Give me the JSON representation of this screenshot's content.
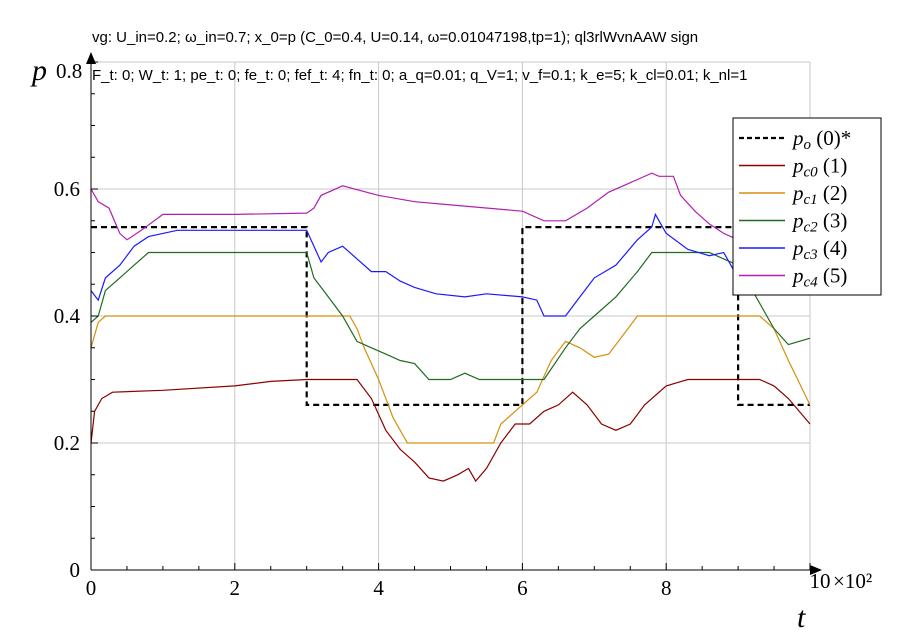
{
  "header": {
    "title": "vg: U_in=0.2; ω_in=0.7; x_0=p (C_0=0.4, U=0.14, ω=0.01047198,tp=1); ql3rlWvnAAW sign",
    "subtitle": "F_t: 0; W_t: 1; pe_t: 0; fe_t: 0; fef_t: 4; fn_t: 0; a_q=0.01; q_V=1; v_f=0.1; k_e=5; k_cl=0.01; k_nl=1"
  },
  "chart_data": {
    "type": "line",
    "xlabel": "t",
    "ylabel": "p",
    "x_multiplier_label": "×10²",
    "xlim": [
      0,
      10
    ],
    "ylim": [
      0,
      0.8
    ],
    "x_ticks": [
      0,
      2,
      4,
      6,
      8,
      10
    ],
    "x_tick_labels": [
      "0",
      "2",
      "4",
      "6",
      "8",
      "10"
    ],
    "y_ticks": [
      0,
      0.2,
      0.4,
      0.6,
      0.8
    ],
    "y_tick_labels": [
      "0",
      "0.2",
      "0.4",
      "0.6",
      "0.8"
    ],
    "grid": true,
    "legend_position": "top-right",
    "series": [
      {
        "name": "p_o (0)*",
        "sub": "o",
        "idx": " (0)*",
        "color": "#000000",
        "dash": true,
        "points": [
          [
            0,
            0.54
          ],
          [
            3,
            0.54
          ],
          [
            3,
            0.26
          ],
          [
            6,
            0.26
          ],
          [
            6,
            0.54
          ],
          [
            9,
            0.54
          ],
          [
            9,
            0.26
          ],
          [
            10,
            0.26
          ]
        ]
      },
      {
        "name": "p_c0 (1)",
        "sub": "c0",
        "idx": " (1)",
        "color": "#8b0000",
        "dash": false,
        "points": [
          [
            0,
            0.2
          ],
          [
            0.05,
            0.25
          ],
          [
            0.15,
            0.27
          ],
          [
            0.3,
            0.28
          ],
          [
            1,
            0.283
          ],
          [
            2,
            0.29
          ],
          [
            2.5,
            0.297
          ],
          [
            3,
            0.3
          ],
          [
            3.7,
            0.3
          ],
          [
            3.9,
            0.27
          ],
          [
            4.1,
            0.22
          ],
          [
            4.3,
            0.19
          ],
          [
            4.5,
            0.17
          ],
          [
            4.7,
            0.145
          ],
          [
            4.9,
            0.14
          ],
          [
            5.1,
            0.15
          ],
          [
            5.25,
            0.16
          ],
          [
            5.35,
            0.14
          ],
          [
            5.5,
            0.16
          ],
          [
            5.7,
            0.2
          ],
          [
            5.9,
            0.23
          ],
          [
            6.1,
            0.23
          ],
          [
            6.3,
            0.25
          ],
          [
            6.5,
            0.26
          ],
          [
            6.7,
            0.28
          ],
          [
            6.9,
            0.26
          ],
          [
            7.1,
            0.23
          ],
          [
            7.3,
            0.22
          ],
          [
            7.5,
            0.23
          ],
          [
            7.7,
            0.26
          ],
          [
            8,
            0.29
          ],
          [
            8.3,
            0.3
          ],
          [
            9.3,
            0.3
          ],
          [
            9.5,
            0.29
          ],
          [
            9.7,
            0.27
          ],
          [
            10,
            0.23
          ]
        ]
      },
      {
        "name": "p_c1 (2)",
        "sub": "c1",
        "idx": " (2)",
        "color": "#d4900e",
        "dash": false,
        "points": [
          [
            0,
            0.35
          ],
          [
            0.1,
            0.39
          ],
          [
            0.2,
            0.4
          ],
          [
            3.6,
            0.4
          ],
          [
            3.7,
            0.38
          ],
          [
            3.8,
            0.35
          ],
          [
            4.0,
            0.3
          ],
          [
            4.2,
            0.24
          ],
          [
            4.4,
            0.2
          ],
          [
            5.6,
            0.2
          ],
          [
            5.7,
            0.23
          ],
          [
            5.9,
            0.25
          ],
          [
            6.2,
            0.28
          ],
          [
            6.4,
            0.33
          ],
          [
            6.6,
            0.36
          ],
          [
            6.8,
            0.35
          ],
          [
            7.0,
            0.335
          ],
          [
            7.2,
            0.34
          ],
          [
            7.4,
            0.37
          ],
          [
            7.6,
            0.4
          ],
          [
            9.3,
            0.4
          ],
          [
            9.5,
            0.38
          ],
          [
            9.7,
            0.33
          ],
          [
            10,
            0.26
          ]
        ]
      },
      {
        "name": "p_c2 (3)",
        "sub": "c2",
        "idx": " (3)",
        "color": "#1f6b1f",
        "dash": false,
        "points": [
          [
            0,
            0.39
          ],
          [
            0.1,
            0.4
          ],
          [
            0.2,
            0.44
          ],
          [
            0.4,
            0.46
          ],
          [
            0.6,
            0.48
          ],
          [
            0.8,
            0.5
          ],
          [
            3,
            0.5
          ],
          [
            3.1,
            0.46
          ],
          [
            3.3,
            0.43
          ],
          [
            3.5,
            0.4
          ],
          [
            3.7,
            0.36
          ],
          [
            3.9,
            0.35
          ],
          [
            4.1,
            0.34
          ],
          [
            4.3,
            0.33
          ],
          [
            4.5,
            0.325
          ],
          [
            4.7,
            0.3
          ],
          [
            5.0,
            0.3
          ],
          [
            5.2,
            0.31
          ],
          [
            5.4,
            0.3
          ],
          [
            6.3,
            0.3
          ],
          [
            6.6,
            0.35
          ],
          [
            6.8,
            0.38
          ],
          [
            7.0,
            0.4
          ],
          [
            7.3,
            0.43
          ],
          [
            7.6,
            0.47
          ],
          [
            7.8,
            0.5
          ],
          [
            8.6,
            0.5
          ],
          [
            8.8,
            0.49
          ],
          [
            9.0,
            0.48
          ],
          [
            9.2,
            0.44
          ],
          [
            9.5,
            0.38
          ],
          [
            9.7,
            0.355
          ],
          [
            10,
            0.365
          ]
        ]
      },
      {
        "name": "p_c3 (4)",
        "sub": "c3",
        "idx": " (4)",
        "color": "#1a1aff",
        "dash": false,
        "points": [
          [
            0,
            0.44
          ],
          [
            0.1,
            0.425
          ],
          [
            0.2,
            0.46
          ],
          [
            0.4,
            0.48
          ],
          [
            0.6,
            0.51
          ],
          [
            0.8,
            0.525
          ],
          [
            1.2,
            0.535
          ],
          [
            3,
            0.535
          ],
          [
            3.1,
            0.51
          ],
          [
            3.2,
            0.485
          ],
          [
            3.3,
            0.5
          ],
          [
            3.5,
            0.51
          ],
          [
            3.7,
            0.49
          ],
          [
            3.9,
            0.47
          ],
          [
            4.1,
            0.47
          ],
          [
            4.3,
            0.455
          ],
          [
            4.5,
            0.445
          ],
          [
            4.8,
            0.435
          ],
          [
            5.2,
            0.43
          ],
          [
            5.5,
            0.435
          ],
          [
            6.0,
            0.43
          ],
          [
            6.2,
            0.425
          ],
          [
            6.3,
            0.4
          ],
          [
            6.6,
            0.4
          ],
          [
            6.8,
            0.43
          ],
          [
            7.0,
            0.46
          ],
          [
            7.3,
            0.48
          ],
          [
            7.6,
            0.52
          ],
          [
            7.8,
            0.54
          ],
          [
            7.85,
            0.56
          ],
          [
            7.9,
            0.55
          ],
          [
            8.0,
            0.53
          ],
          [
            8.3,
            0.505
          ],
          [
            8.6,
            0.495
          ],
          [
            8.8,
            0.5
          ],
          [
            9.0,
            0.46
          ]
        ]
      },
      {
        "name": "p_c4 (5)",
        "sub": "c4",
        "idx": " (5)",
        "color": "#b020b0",
        "dash": false,
        "points": [
          [
            0,
            0.6
          ],
          [
            0.1,
            0.58
          ],
          [
            0.25,
            0.57
          ],
          [
            0.4,
            0.53
          ],
          [
            0.5,
            0.52
          ],
          [
            0.7,
            0.535
          ],
          [
            1,
            0.56
          ],
          [
            2,
            0.56
          ],
          [
            3,
            0.562
          ],
          [
            3.1,
            0.57
          ],
          [
            3.2,
            0.59
          ],
          [
            3.5,
            0.605
          ],
          [
            4,
            0.59
          ],
          [
            4.5,
            0.58
          ],
          [
            5,
            0.575
          ],
          [
            6,
            0.565
          ],
          [
            6.3,
            0.55
          ],
          [
            6.6,
            0.55
          ],
          [
            6.9,
            0.57
          ],
          [
            7.2,
            0.595
          ],
          [
            7.5,
            0.61
          ],
          [
            7.8,
            0.625
          ],
          [
            7.9,
            0.62
          ],
          [
            8.1,
            0.62
          ],
          [
            8.2,
            0.59
          ],
          [
            8.4,
            0.565
          ],
          [
            8.6,
            0.545
          ],
          [
            8.8,
            0.53
          ],
          [
            9.0,
            0.52
          ]
        ]
      }
    ]
  }
}
